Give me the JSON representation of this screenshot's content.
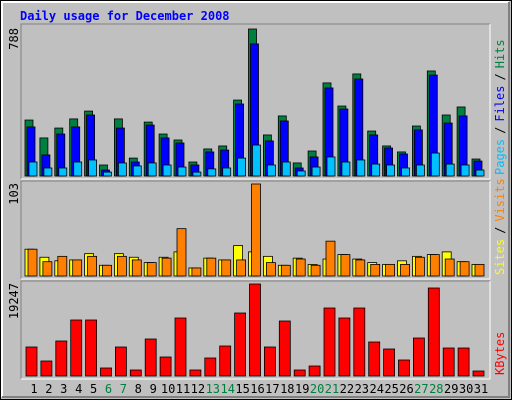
{
  "chart_data": {
    "type": "bar",
    "title": "Daily usage for December 2008",
    "categories": [
      "1",
      "2",
      "3",
      "4",
      "5",
      "6",
      "7",
      "8",
      "9",
      "10",
      "11",
      "12",
      "13",
      "14",
      "15",
      "16",
      "17",
      "18",
      "19",
      "20",
      "21",
      "22",
      "23",
      "24",
      "25",
      "26",
      "27",
      "28",
      "29",
      "30",
      "31"
    ],
    "category_colors": [
      "#000000",
      "#000000",
      "#000000",
      "#000000",
      "#000000",
      "#008040",
      "#008040",
      "#000000",
      "#000000",
      "#000000",
      "#000000",
      "#000000",
      "#008040",
      "#008040",
      "#000000",
      "#000000",
      "#000000",
      "#000000",
      "#000000",
      "#008040",
      "#008040",
      "#000000",
      "#000000",
      "#000000",
      "#000000",
      "#000000",
      "#008040",
      "#008040",
      "#000000",
      "#000000",
      "#000000"
    ],
    "legend_separator": "/",
    "panels": [
      {
        "ylim": [
          0,
          788
        ],
        "yticks": [
          788
        ],
        "series": [
          {
            "name": "Pages",
            "color": "#00c0ff",
            "values": [
              75,
              43,
              43,
              75,
              86,
              21,
              70,
              54,
              70,
              59,
              48,
              21,
              38,
              43,
              96,
              166,
              59,
              75,
              27,
              48,
              102,
              75,
              86,
              64,
              59,
              43,
              59,
              123,
              64,
              59,
              32
            ]
          },
          {
            "name": "Files",
            "color": "#0000ff",
            "values": [
              263,
              113,
              225,
              263,
              327,
              32,
              257,
              75,
              273,
              204,
              177,
              59,
              129,
              139,
              386,
              708,
              188,
              295,
              43,
              102,
              472,
              359,
              520,
              220,
              150,
              118,
              247,
              541,
              284,
              322,
              80
            ]
          },
          {
            "name": "Hits",
            "color": "#008040",
            "values": [
              300,
              204,
              257,
              306,
              348,
              59,
              306,
              96,
              289,
              225,
              193,
              75,
              145,
              161,
              407,
              788,
              220,
              322,
              70,
              134,
              499,
              375,
              547,
              241,
              161,
              129,
              268,
              563,
              327,
              370,
              91
            ]
          }
        ]
      },
      {
        "ylim": [
          0,
          103
        ],
        "yticks": [
          103
        ],
        "series": [
          {
            "name": "Sites",
            "color": "#ffff00",
            "values": [
              30,
              21,
              17,
              18,
              25,
              12,
              25,
              21,
              15,
              21,
              27,
              9,
              20,
              18,
              34,
              27,
              22,
              12,
              20,
              13,
              19,
              24,
              19,
              15,
              13,
              17,
              22,
              24,
              27,
              16,
              13
            ]
          },
          {
            "name": "Visits",
            "color": "#ff8000",
            "values": [
              30,
              16,
              22,
              18,
              22,
              12,
              22,
              18,
              15,
              20,
              53,
              9,
              20,
              18,
              18,
              103,
              15,
              12,
              19,
              12,
              39,
              24,
              18,
              13,
              13,
              13,
              21,
              24,
              19,
              16,
              13
            ]
          }
        ]
      },
      {
        "ylim": [
          0,
          19247
        ],
        "yticks": [
          19247
        ],
        "series": [
          {
            "name": "KBytes",
            "color": "#ff0000",
            "values": [
              6067,
              3138,
              7322,
              11715,
              11715,
              1674,
              6067,
              1255,
              7740,
              3975,
              12133,
              1255,
              3766,
              6276,
              13179,
              19247,
              6067,
              11506,
              1255,
              2092,
              14225,
              12133,
              14225,
              7113,
              5648,
              3347,
              7949,
              18410,
              5857,
              5857,
              1046
            ]
          }
        ]
      }
    ]
  }
}
